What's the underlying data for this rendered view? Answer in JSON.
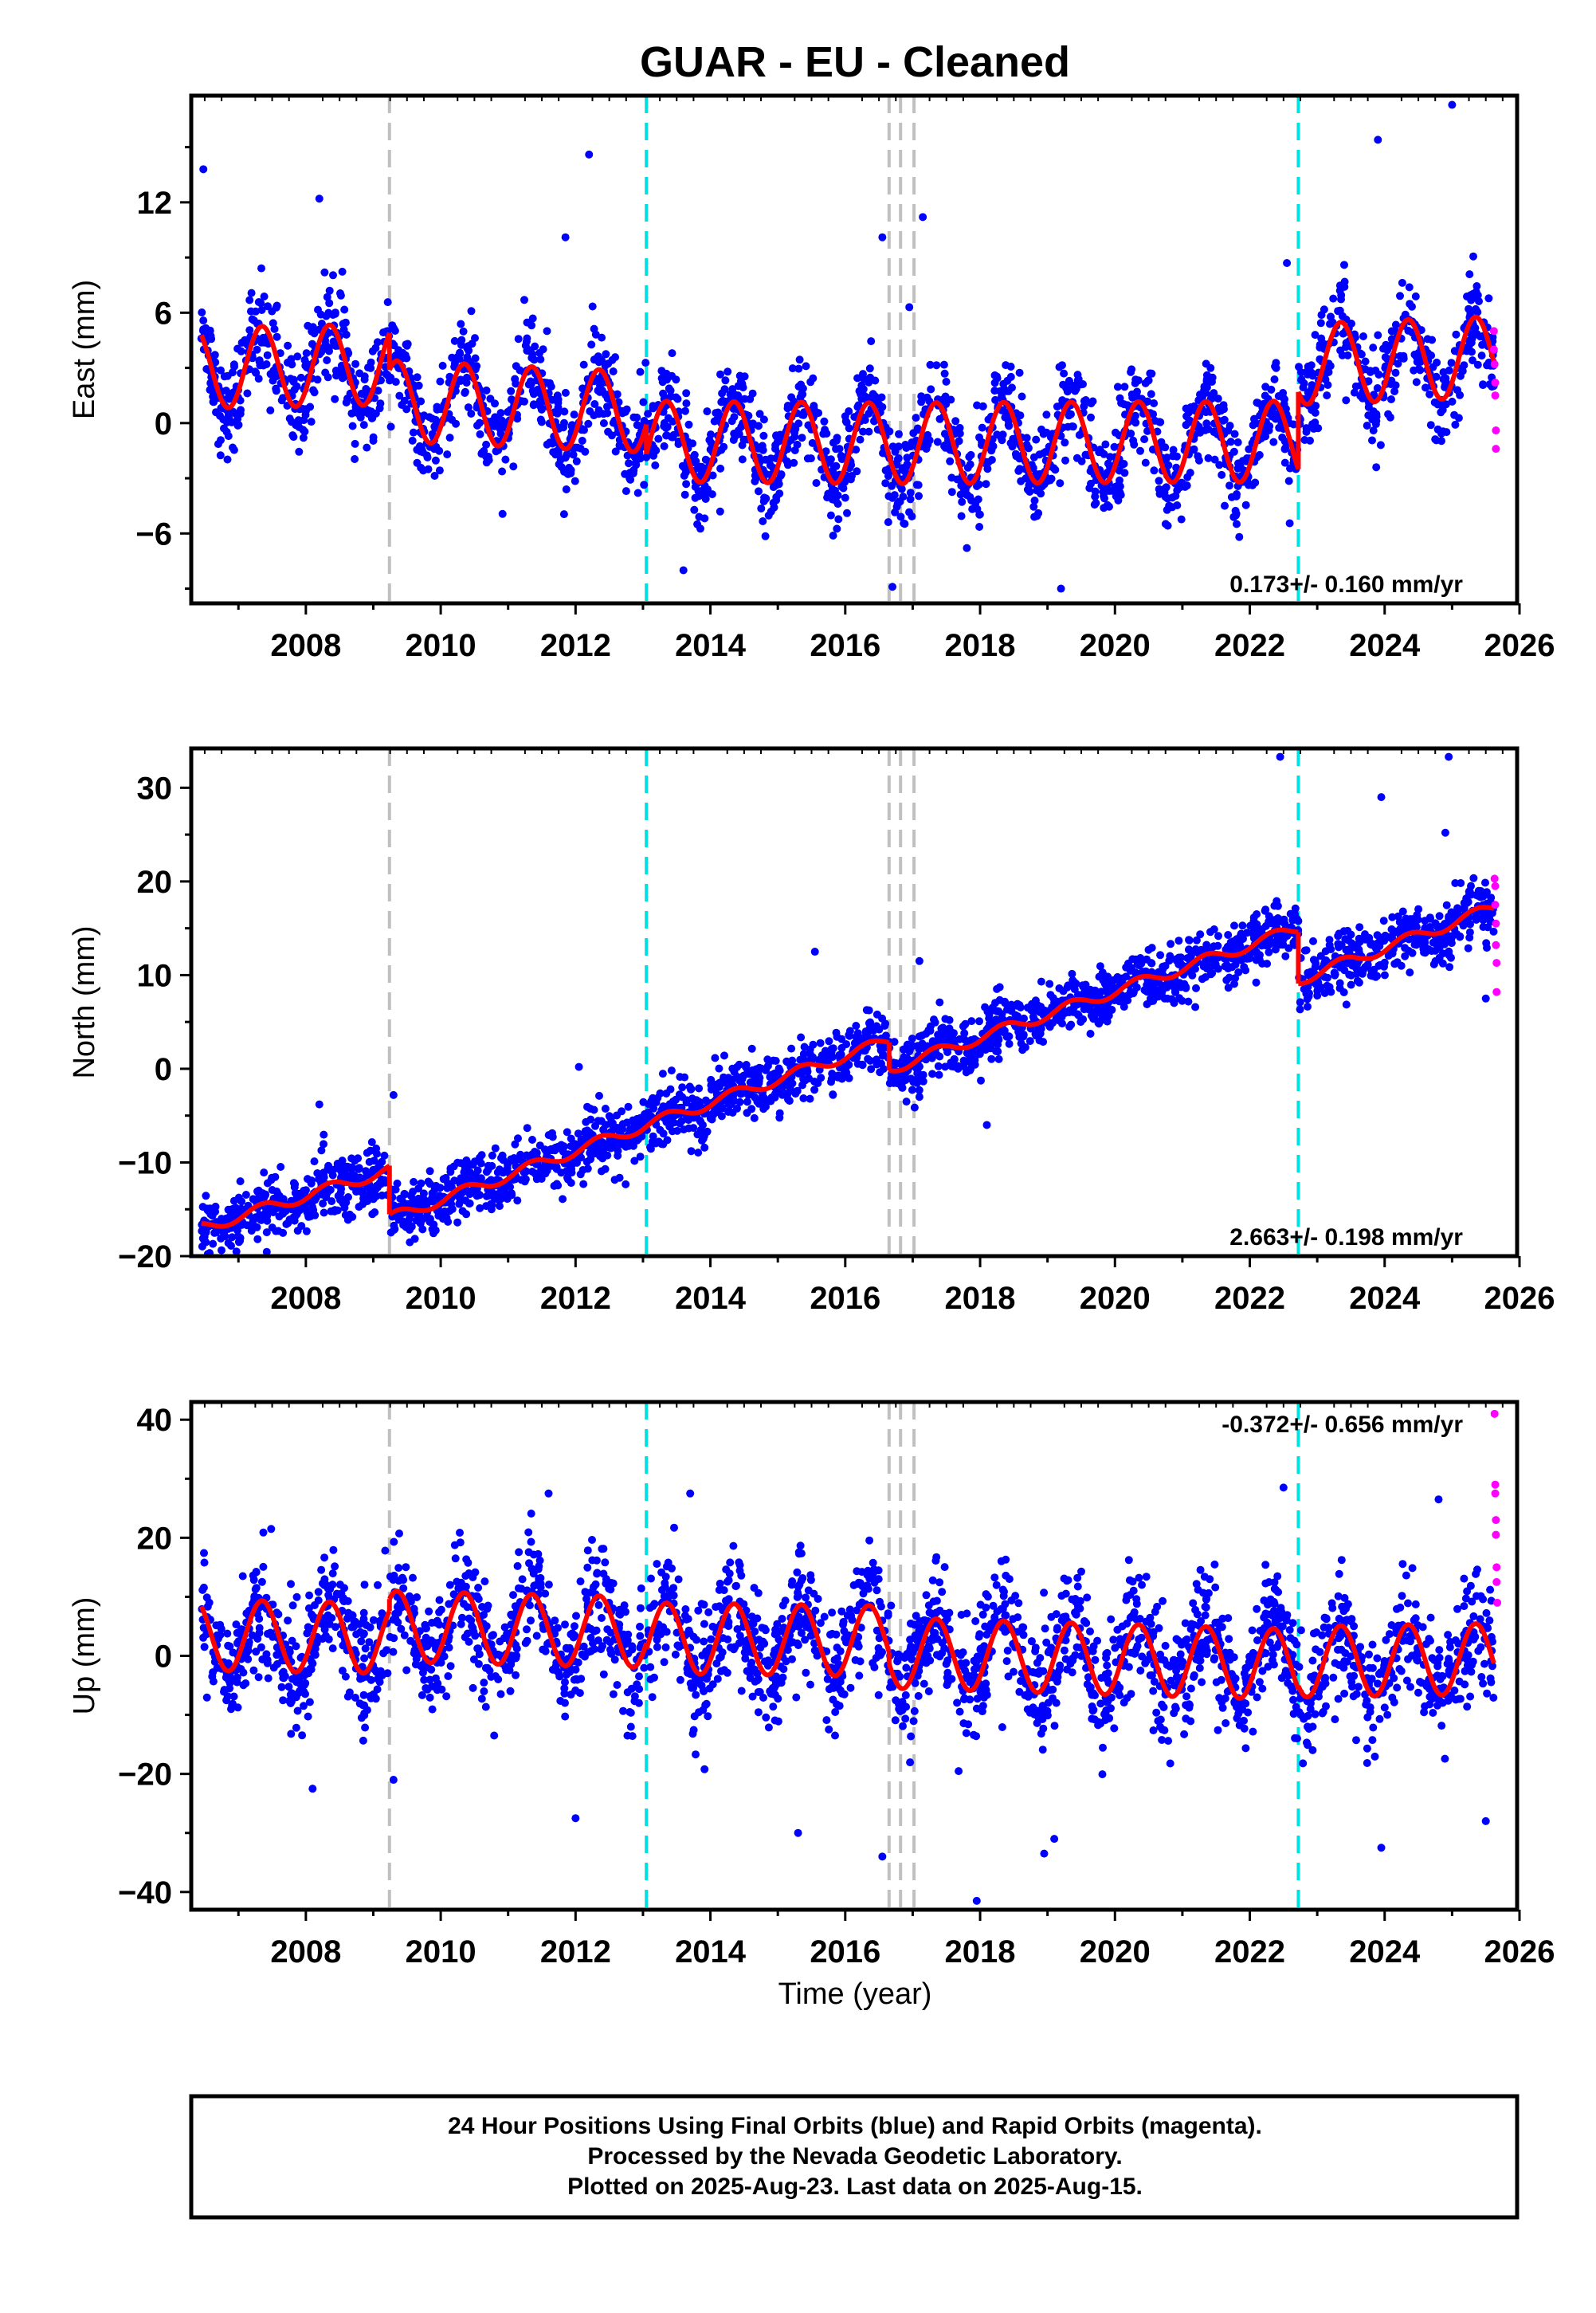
{
  "title": "GUAR  - EU - Cleaned",
  "x_axis_label": "Time (year)",
  "footer": {
    "lines": [
      "24 Hour Positions Using Final Orbits (blue) and Rapid Orbits (magenta).",
      "Processed by the Nevada Geodetic Laboratory.",
      "Plotted on 2025-Aug-23. Last data on 2025-Aug-15."
    ]
  },
  "colors": {
    "final_orbit_points": "#0000ff",
    "rapid_orbit_points": "#ff00ff",
    "model_fit": "#ff0000",
    "equipment_change_line": "#c0c0c0",
    "earthquake_line": "#00e0e0"
  },
  "chart_data": [
    {
      "type": "scatter",
      "name": "east",
      "ylabel": "East (mm)",
      "xlim": [
        2006.3,
        2026.0
      ],
      "ylim": [
        -9.8,
        17.8
      ],
      "x_ticks": [
        2008,
        2010,
        2012,
        2014,
        2016,
        2018,
        2020,
        2022,
        2024,
        2026
      ],
      "y_ticks": [
        -6,
        0,
        6,
        12
      ],
      "y_tick_labels": [
        "−6",
        "0",
        "6",
        "12"
      ],
      "rate_text": "0.173+/- 0.160 mm/yr",
      "rate_position": "bottom-right",
      "grid": false,
      "gray_dashed_lines": [
        2009.24,
        2016.65,
        2016.82,
        2017.02
      ],
      "cyan_dashed_lines": [
        2013.05,
        2022.72
      ],
      "model_fit": {
        "annual_amplitude": 2.2,
        "segments": [
          {
            "start": 2006.45,
            "end": 2009.24,
            "y0": 3.0,
            "y1": 3.2
          },
          {
            "start": 2009.24,
            "end": 2013.05,
            "y0": 1.2,
            "y1": 0.6
          },
          {
            "start": 2013.05,
            "end": 2016.65,
            "y0": -1.0,
            "y1": -1.1
          },
          {
            "start": 2016.65,
            "end": 2022.72,
            "y0": -1.1,
            "y1": -1.0
          },
          {
            "start": 2022.72,
            "end": 2025.62,
            "y0": 3.2,
            "y1": 3.6
          }
        ]
      },
      "final_orbit_points": {
        "count": 2500,
        "noise": 1.3,
        "outliers": [
          [
            2006.48,
            13.8
          ],
          [
            2008.2,
            12.2
          ],
          [
            2011.85,
            10.1
          ],
          [
            2012.2,
            14.6
          ],
          [
            2016.55,
            10.1
          ],
          [
            2016.95,
            6.3
          ],
          [
            2017.15,
            11.2
          ],
          [
            2016.7,
            -8.9
          ],
          [
            2019.2,
            -9.0
          ],
          [
            2013.6,
            -8.0
          ],
          [
            2023.9,
            15.4
          ],
          [
            2025.0,
            17.3
          ],
          [
            2022.55,
            8.7
          ],
          [
            2023.4,
            8.6
          ]
        ]
      },
      "rapid_orbit_points": [
        [
          2025.62,
          5.0
        ],
        [
          2025.62,
          4.0
        ],
        [
          2025.63,
          3.2
        ],
        [
          2025.64,
          2.2
        ],
        [
          2025.64,
          1.5
        ],
        [
          2025.65,
          -0.4
        ],
        [
          2025.65,
          -1.4
        ]
      ]
    },
    {
      "type": "scatter",
      "name": "north",
      "ylabel": "North (mm)",
      "xlim": [
        2006.3,
        2026.0
      ],
      "ylim": [
        -20.0,
        34.2
      ],
      "x_ticks": [
        2008,
        2010,
        2012,
        2014,
        2016,
        2018,
        2020,
        2022,
        2024,
        2026
      ],
      "y_ticks": [
        -20,
        -10,
        0,
        10,
        20,
        30
      ],
      "y_tick_labels": [
        "−20",
        "−10",
        "0",
        "10",
        "20",
        "30"
      ],
      "rate_text": "2.663+/- 0.198 mm/yr",
      "rate_position": "bottom-right",
      "grid": false,
      "gray_dashed_lines": [
        2009.24,
        2016.65,
        2016.82,
        2017.02
      ],
      "cyan_dashed_lines": [
        2013.05,
        2022.72
      ],
      "model_fit": {
        "annual_amplitude": 0.6,
        "segments": [
          {
            "start": 2006.45,
            "end": 2009.24,
            "y0": -17.0,
            "y1": -10.8
          },
          {
            "start": 2009.24,
            "end": 2013.05,
            "y0": -16.0,
            "y1": -6.0
          },
          {
            "start": 2013.05,
            "end": 2016.65,
            "y0": -6.0,
            "y1": 3.0
          },
          {
            "start": 2016.65,
            "end": 2022.72,
            "y0": 0.0,
            "y1": 15.0
          },
          {
            "start": 2022.72,
            "end": 2025.62,
            "y0": 9.5,
            "y1": 17.2
          }
        ]
      },
      "final_orbit_points": {
        "count": 2500,
        "noise": 1.6,
        "outliers": [
          [
            2008.2,
            -3.8
          ],
          [
            2009.3,
            -2.8
          ],
          [
            2012.05,
            0.2
          ],
          [
            2015.55,
            12.5
          ],
          [
            2017.1,
            11.5
          ],
          [
            2017.1,
            -3.0
          ],
          [
            2018.1,
            -6.0
          ],
          [
            2022.45,
            33.3
          ],
          [
            2023.95,
            29.0
          ],
          [
            2024.95,
            33.3
          ],
          [
            2024.9,
            25.2
          ],
          [
            2025.5,
            7.5
          ]
        ]
      },
      "rapid_orbit_points": [
        [
          2025.63,
          20.3
        ],
        [
          2025.64,
          19.5
        ],
        [
          2025.64,
          17.5
        ],
        [
          2025.65,
          15.5
        ],
        [
          2025.65,
          13.2
        ],
        [
          2025.66,
          11.3
        ],
        [
          2025.66,
          8.2
        ]
      ]
    },
    {
      "type": "scatter",
      "name": "up",
      "ylabel": "Up (mm)",
      "xlim": [
        2006.3,
        2026.0
      ],
      "ylim": [
        -43.0,
        43.0
      ],
      "x_ticks": [
        2008,
        2010,
        2012,
        2014,
        2016,
        2018,
        2020,
        2022,
        2024,
        2026
      ],
      "y_ticks": [
        -40,
        -20,
        0,
        20,
        40
      ],
      "y_tick_labels": [
        "−40",
        "−20",
        "0",
        "20",
        "40"
      ],
      "rate_text": "-0.372+/- 0.656 mm/yr",
      "rate_position": "top-right",
      "grid": false,
      "gray_dashed_lines": [
        2009.24,
        2016.65,
        2016.82,
        2017.02
      ],
      "cyan_dashed_lines": [
        2013.05,
        2022.72
      ],
      "model_fit": {
        "annual_amplitude": 6.0,
        "segments": [
          {
            "start": 2006.45,
            "end": 2009.24,
            "y0": 3.5,
            "y1": 3.0
          },
          {
            "start": 2009.24,
            "end": 2013.05,
            "y0": 5.0,
            "y1": 4.0
          },
          {
            "start": 2013.05,
            "end": 2016.65,
            "y0": 3.0,
            "y1": 2.5
          },
          {
            "start": 2016.65,
            "end": 2022.72,
            "y0": 0.5,
            "y1": -1.5
          },
          {
            "start": 2022.72,
            "end": 2025.62,
            "y0": -1.0,
            "y1": -0.5
          }
        ]
      },
      "final_orbit_points": {
        "count": 2500,
        "noise": 5.0,
        "outliers": [
          [
            2016.55,
            -34.0
          ],
          [
            2017.95,
            -41.5
          ],
          [
            2018.95,
            -33.5
          ],
          [
            2019.1,
            -31.0
          ],
          [
            2015.3,
            -30.0
          ],
          [
            2023.95,
            -32.5
          ],
          [
            2012.0,
            -27.5
          ],
          [
            2013.7,
            27.5
          ],
          [
            2011.6,
            27.5
          ],
          [
            2022.5,
            28.5
          ],
          [
            2024.8,
            26.5
          ],
          [
            2025.5,
            -28.0
          ],
          [
            2008.1,
            -22.5
          ],
          [
            2009.3,
            -21.0
          ]
        ]
      },
      "rapid_orbit_points": [
        [
          2025.63,
          41.0
        ],
        [
          2025.64,
          29.0
        ],
        [
          2025.64,
          27.5
        ],
        [
          2025.65,
          23.0
        ],
        [
          2025.65,
          20.5
        ],
        [
          2025.66,
          15.0
        ],
        [
          2025.66,
          12.5
        ],
        [
          2025.67,
          9.0
        ]
      ]
    }
  ]
}
